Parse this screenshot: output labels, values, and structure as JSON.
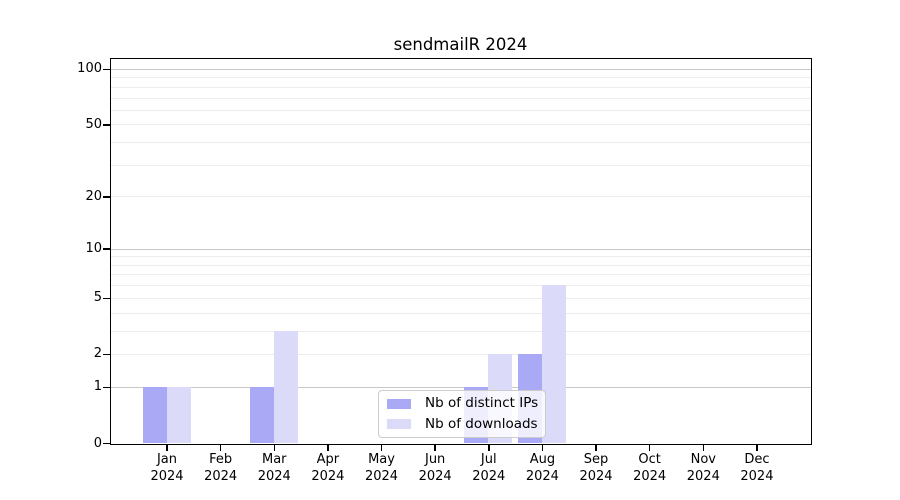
{
  "title": "sendmailR 2024",
  "chart_data": {
    "type": "bar",
    "title": "sendmailR 2024",
    "categories": [
      "Jan",
      "Feb",
      "Mar",
      "Apr",
      "May",
      "Jun",
      "Jul",
      "Aug",
      "Sep",
      "Oct",
      "Nov",
      "Dec"
    ],
    "year": "2024",
    "series": [
      {
        "name": "Nb of distinct IPs",
        "color": "#a9a9f5",
        "values": [
          1,
          0,
          1,
          0,
          0,
          0,
          1,
          2,
          0,
          0,
          0,
          0
        ]
      },
      {
        "name": "Nb of downloads",
        "color": "#dbdbf9",
        "values": [
          1,
          0,
          3,
          0,
          0,
          0,
          2,
          6,
          0,
          0,
          0,
          0
        ]
      }
    ],
    "y_axis": {
      "scale": "log1p",
      "ticks": [
        0,
        1,
        2,
        5,
        10,
        20,
        50,
        100
      ],
      "major_gridlines": [
        1,
        10,
        100
      ],
      "minor_gridlines": [
        2,
        3,
        4,
        5,
        6,
        7,
        8,
        9,
        20,
        30,
        40,
        50,
        60,
        70,
        80,
        90
      ],
      "ylim": [
        0,
        113
      ]
    },
    "xlabel": "",
    "ylabel": "",
    "legend_position": "bottom-center",
    "colors": {
      "major_grid": "#c8c8c8",
      "minor_grid": "#ececec",
      "axis": "#000000",
      "legend_border": "#cccccc",
      "legend_bg": "rgba(255,255,255,0.8)"
    }
  }
}
